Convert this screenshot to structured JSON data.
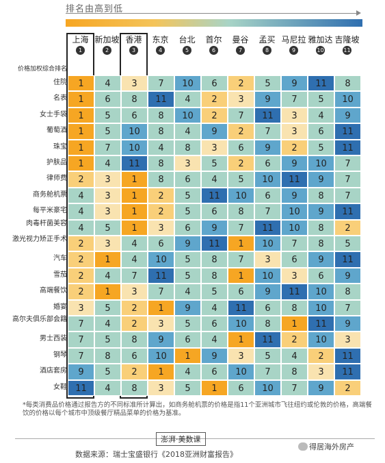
{
  "header": {
    "direction": "排名由高到低"
  },
  "row_header": {
    "text": "价格加权综合排名"
  },
  "colors": {
    "1": "#f6a623",
    "2": "#f9cf79",
    "3": "#f9e3b0",
    "mid": "#a8d4c6",
    "low": "#5fa6cc",
    "lowest": "#2f6fb0"
  },
  "chart_data": {
    "type": "table",
    "title": "",
    "columns": [
      {
        "city": "上海",
        "rank": "1",
        "highlight": true
      },
      {
        "city": "新加坡",
        "rank": "2",
        "highlight": false
      },
      {
        "city": "香港",
        "rank": "3",
        "highlight": true
      },
      {
        "city": "东京",
        "rank": "4",
        "highlight": false
      },
      {
        "city": "台北",
        "rank": "5",
        "highlight": false
      },
      {
        "city": "首尔",
        "rank": "6",
        "highlight": false
      },
      {
        "city": "曼谷",
        "rank": "7",
        "highlight": false
      },
      {
        "city": "孟买",
        "rank": "8",
        "highlight": false
      },
      {
        "city": "马尼拉",
        "rank": "9",
        "highlight": false
      },
      {
        "city": "雅加达",
        "rank": "10",
        "highlight": false
      },
      {
        "city": "吉隆坡",
        "rank": "11",
        "highlight": false
      }
    ],
    "rows": [
      {
        "label": "住院",
        "values": [
          1,
          4,
          3,
          7,
          10,
          6,
          2,
          5,
          9,
          11,
          8
        ]
      },
      {
        "label": "名表",
        "values": [
          1,
          6,
          8,
          11,
          4,
          2,
          3,
          9,
          7,
          5,
          10
        ]
      },
      {
        "label": "女士手袋",
        "values": [
          1,
          5,
          6,
          8,
          10,
          2,
          7,
          11,
          3,
          4,
          9
        ]
      },
      {
        "label": "葡萄酒",
        "values": [
          1,
          5,
          10,
          8,
          4,
          9,
          2,
          7,
          3,
          6,
          11
        ]
      },
      {
        "label": "珠宝",
        "values": [
          1,
          7,
          10,
          4,
          8,
          3,
          6,
          9,
          2,
          5,
          11
        ]
      },
      {
        "label": "护肤品",
        "values": [
          1,
          4,
          11,
          8,
          3,
          5,
          2,
          6,
          9,
          10,
          7
        ]
      },
      {
        "label": "律师费",
        "values": [
          2,
          3,
          1,
          8,
          6,
          4,
          5,
          10,
          11,
          9,
          7
        ]
      },
      {
        "label": "商务舱机票",
        "values": [
          4,
          3,
          1,
          2,
          5,
          11,
          10,
          6,
          9,
          8,
          7
        ]
      },
      {
        "label": "每平米豪宅",
        "values": [
          4,
          3,
          1,
          2,
          5,
          6,
          8,
          7,
          10,
          9,
          11
        ]
      },
      {
        "label": "肉毒杆菌美容",
        "values": [
          4,
          5,
          1,
          3,
          6,
          9,
          7,
          11,
          10,
          8,
          2
        ]
      },
      {
        "label": "激光视力矫正手术",
        "values": [
          2,
          3,
          4,
          6,
          9,
          11,
          1,
          10,
          7,
          8,
          5
        ]
      },
      {
        "label": "汽车",
        "values": [
          2,
          1,
          4,
          10,
          5,
          8,
          7,
          3,
          6,
          9,
          11
        ]
      },
      {
        "label": "雪茄",
        "values": [
          2,
          4,
          7,
          11,
          5,
          8,
          1,
          10,
          3,
          6,
          9
        ]
      },
      {
        "label": "高端餐饮",
        "values": [
          2,
          1,
          3,
          7,
          4,
          5,
          6,
          9,
          11,
          10,
          8
        ]
      },
      {
        "label": "婚宴",
        "values": [
          3,
          5,
          2,
          1,
          9,
          4,
          11,
          6,
          8,
          10,
          7
        ]
      },
      {
        "label": "高尔夫俱乐部会籍",
        "values": [
          7,
          4,
          2,
          3,
          5,
          6,
          10,
          8,
          1,
          11,
          9
        ]
      },
      {
        "label": "男士西装",
        "values": [
          7,
          5,
          8,
          9,
          6,
          4,
          1,
          11,
          2,
          10,
          3
        ]
      },
      {
        "label": "钢琴",
        "values": [
          7,
          8,
          6,
          10,
          1,
          9,
          3,
          5,
          4,
          2,
          11
        ]
      },
      {
        "label": "酒店套房",
        "values": [
          9,
          5,
          2,
          1,
          4,
          6,
          10,
          7,
          8,
          3,
          11
        ]
      },
      {
        "label": "女鞋",
        "values": [
          11,
          4,
          8,
          3,
          5,
          1,
          6,
          10,
          7,
          9,
          2
        ]
      }
    ]
  },
  "footnote": "*每类消费品价格通过报告方的不同标准所计算出，如商务舱机票的价格是指11个亚洲城市飞往纽约或伦敦的价格，高端餐饮的价格以每个城市中顶级餐厅精品菜单的价格为基准。",
  "brand": "澎湃·美数课",
  "source": "数据来源：瑞士宝盛银行《2018亚洲财富报告》",
  "wechat": "得居海外房产"
}
